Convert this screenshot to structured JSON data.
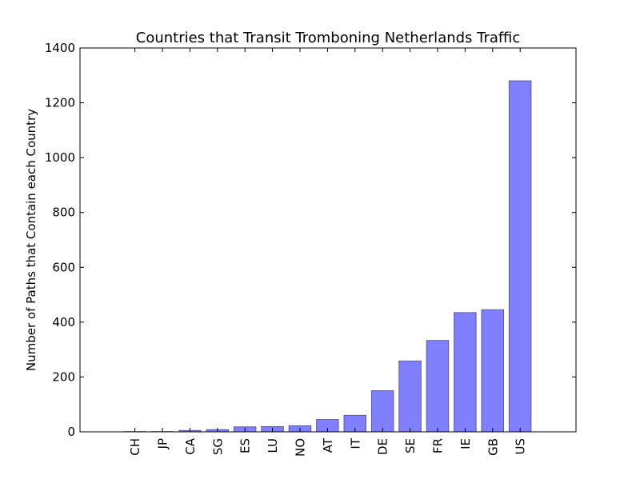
{
  "chart_data": {
    "type": "bar",
    "title": "Countries that Transit Tromboning Netherlands  Traffic",
    "xlabel": "",
    "ylabel": "Number of Paths that Contain each Country",
    "categories": [
      "CH",
      "JP",
      "CA",
      "SG",
      "ES",
      "LU",
      "NO",
      "AT",
      "IT",
      "DE",
      "SE",
      "FR",
      "IE",
      "GB",
      "US"
    ],
    "values": [
      1,
      1,
      5,
      8,
      18,
      19,
      22,
      45,
      60,
      150,
      258,
      333,
      435,
      445,
      1280
    ],
    "ylim": [
      0,
      1400
    ],
    "yticks": [
      0,
      200,
      400,
      600,
      800,
      1000,
      1200,
      1400
    ],
    "grid": false,
    "bar_color": "#8080ff",
    "bar_edge_color": "#5a5a9a"
  }
}
